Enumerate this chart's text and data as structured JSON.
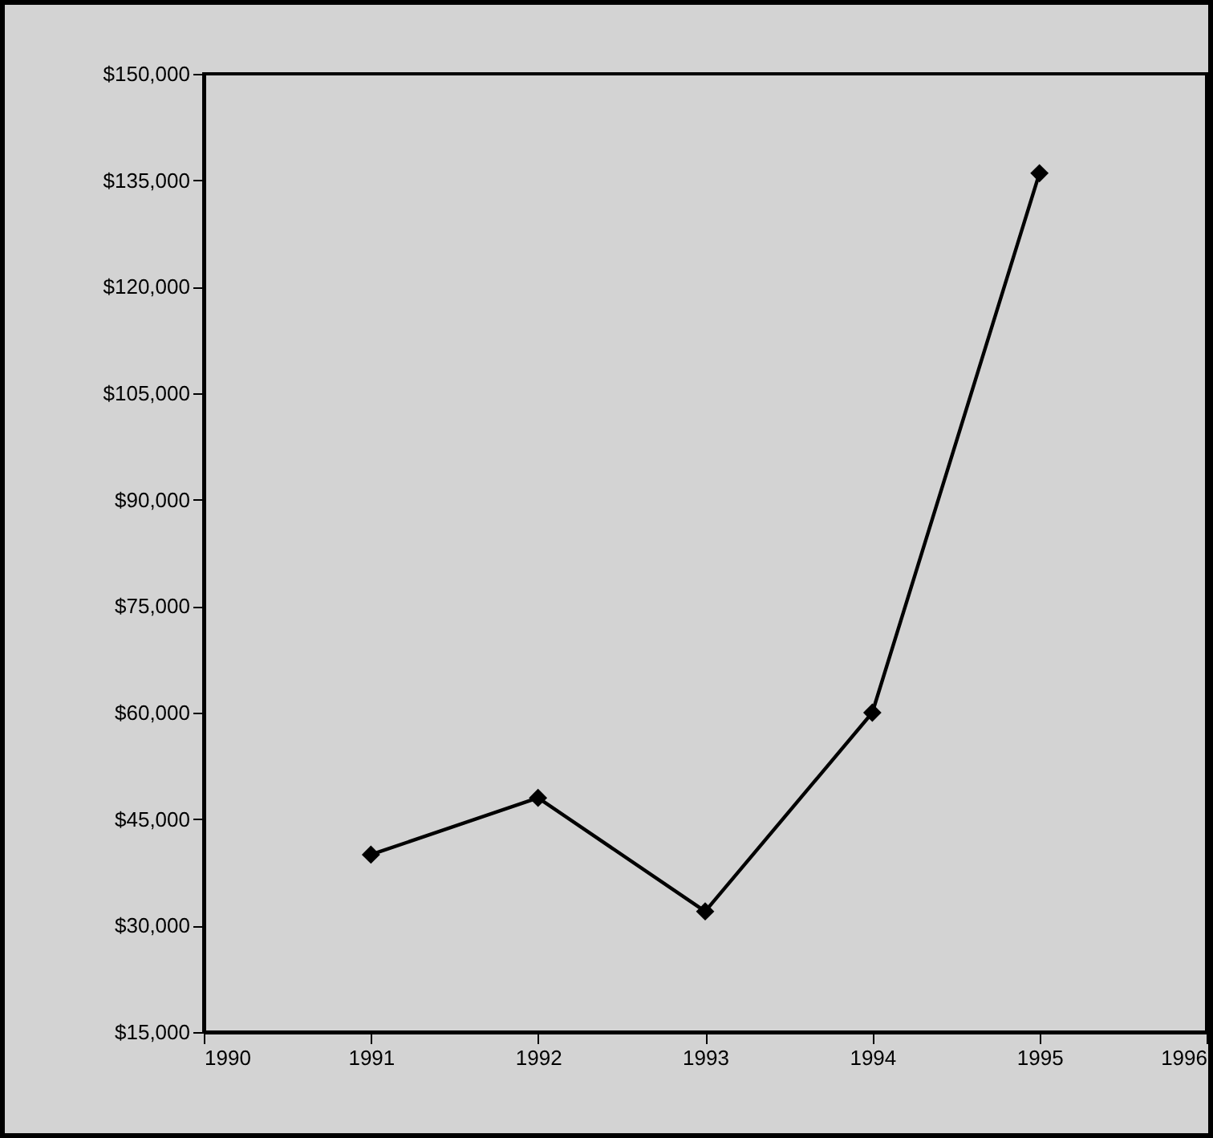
{
  "chart_data": {
    "type": "line",
    "x": [
      1991,
      1992,
      1993,
      1994,
      1995
    ],
    "series": [
      {
        "color": "#000000",
        "values": [
          40000,
          48000,
          32000,
          60000,
          136000
        ]
      }
    ],
    "xlim": [
      1990,
      1996
    ],
    "xticks": [
      1990,
      1991,
      1992,
      1993,
      1994,
      1995,
      1996
    ],
    "ylim": [
      15000,
      150000
    ],
    "yticks": [
      {
        "value": 15000,
        "label": "$15,000"
      },
      {
        "value": 30000,
        "label": "$30,000"
      },
      {
        "value": 45000,
        "label": "$45,000"
      },
      {
        "value": 60000,
        "label": "$60,000"
      },
      {
        "value": 75000,
        "label": "$75,000"
      },
      {
        "value": 90000,
        "label": "$90,000"
      },
      {
        "value": 105000,
        "label": "$105,000"
      },
      {
        "value": 120000,
        "label": "$120,000"
      },
      {
        "value": 135000,
        "label": "$135,000"
      },
      {
        "value": 150000,
        "label": "$150,000"
      }
    ],
    "marker": "diamond",
    "line_style": "solid",
    "grid": false
  }
}
